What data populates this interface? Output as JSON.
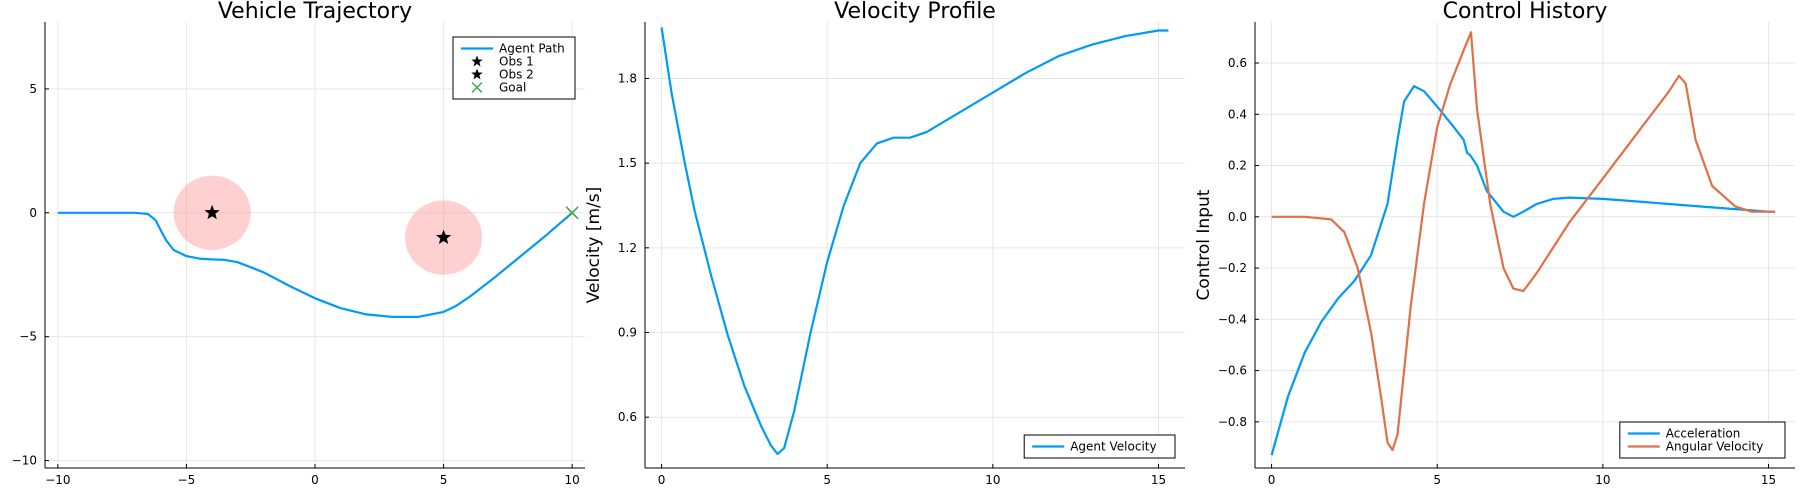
{
  "chart_data": [
    {
      "type": "line",
      "title": "Vehicle Trajectory",
      "xlabel": "",
      "ylabel": "",
      "xlim": [
        -10.5,
        10.5
      ],
      "ylim": [
        -10.3,
        7.7
      ],
      "xticks": [
        -10,
        -5,
        0,
        5,
        10
      ],
      "yticks": [
        -10,
        -5,
        0,
        5
      ],
      "grid": true,
      "legend_position": "top-right",
      "series": [
        {
          "name": "Agent Path",
          "color": "#009af9",
          "x": [
            -10,
            -8,
            -7,
            -6.5,
            -6.2,
            -6,
            -5.8,
            -5.5,
            -5,
            -4.5,
            -4,
            -3.5,
            -3,
            -2,
            -1,
            0,
            1,
            2,
            3,
            4,
            5,
            5.5,
            6,
            7,
            8,
            9,
            10
          ],
          "y": [
            0,
            0,
            0,
            -0.05,
            -0.3,
            -0.7,
            -1.1,
            -1.5,
            -1.75,
            -1.85,
            -1.88,
            -1.9,
            -2.0,
            -2.4,
            -2.95,
            -3.45,
            -3.85,
            -4.1,
            -4.2,
            -4.2,
            -4.0,
            -3.75,
            -3.4,
            -2.6,
            -1.75,
            -0.9,
            0
          ]
        }
      ],
      "obstacles": [
        {
          "name": "Obs 1",
          "x": -4,
          "y": 0,
          "radius": 1.5,
          "fill": "#ff9696"
        },
        {
          "name": "Obs 2",
          "x": 5,
          "y": -1,
          "radius": 1.5,
          "fill": "#ff9696"
        }
      ],
      "goal": {
        "name": "Goal",
        "x": 10,
        "y": 0,
        "color": "#3da44d"
      },
      "legend": [
        {
          "label": "Agent Path",
          "marker": "line",
          "color": "#009af9"
        },
        {
          "label": "Obs 1",
          "marker": "star",
          "color": "#000000"
        },
        {
          "label": "Obs 2",
          "marker": "star",
          "color": "#000000"
        },
        {
          "label": "Goal",
          "marker": "x",
          "color": "#3da44d"
        }
      ]
    },
    {
      "type": "line",
      "title": "Velocity Profile",
      "xlabel": "",
      "ylabel": "Velocity [m/s]",
      "xlim": [
        -0.5,
        15.8
      ],
      "ylim": [
        0.42,
        2.0
      ],
      "xticks": [
        0,
        5,
        10,
        15
      ],
      "yticks": [
        0.6,
        0.9,
        1.2,
        1.5,
        1.8
      ],
      "yticklabels": [
        "0.6",
        "0.9",
        "1.2",
        "1.5",
        "1.8"
      ],
      "grid": true,
      "legend_position": "bottom-right",
      "series": [
        {
          "name": "Agent Velocity",
          "color": "#009af9",
          "x": [
            0,
            0.3,
            0.7,
            1,
            1.5,
            2,
            2.5,
            3,
            3.3,
            3.5,
            3.7,
            4,
            4.5,
            5,
            5.5,
            6,
            6.5,
            7,
            7.5,
            8,
            9,
            10,
            11,
            12,
            13,
            14,
            15,
            15.3
          ],
          "y": [
            1.98,
            1.75,
            1.5,
            1.33,
            1.1,
            0.89,
            0.71,
            0.57,
            0.5,
            0.47,
            0.49,
            0.62,
            0.9,
            1.15,
            1.35,
            1.5,
            1.57,
            1.59,
            1.59,
            1.61,
            1.68,
            1.75,
            1.82,
            1.88,
            1.92,
            1.95,
            1.97,
            1.97
          ]
        }
      ],
      "legend": [
        {
          "label": "Agent Velocity",
          "marker": "line",
          "color": "#009af9"
        }
      ]
    },
    {
      "type": "line",
      "title": "Control History",
      "xlabel": "",
      "ylabel": "Control Input",
      "xlim": [
        -0.5,
        15.8
      ],
      "ylim": [
        -0.98,
        0.76
      ],
      "xticks": [
        0,
        5,
        10,
        15
      ],
      "yticks": [
        -0.8,
        -0.6,
        -0.4,
        -0.2,
        0.0,
        0.2,
        0.4,
        0.6
      ],
      "yticklabels": [
        "−0.8",
        "−0.6",
        "−0.4",
        "−0.2",
        "0.0",
        "0.2",
        "0.4",
        "0.6"
      ],
      "grid": true,
      "legend_position": "bottom-right",
      "series": [
        {
          "name": "Acceleration",
          "color": "#009af9",
          "x": [
            0,
            0.5,
            1,
            1.5,
            2,
            2.5,
            3,
            3.5,
            3.8,
            4,
            4.3,
            4.6,
            5,
            5.5,
            5.8,
            5.9,
            6,
            6.2,
            6.5,
            7,
            7.3,
            7.6,
            8,
            8.5,
            9,
            10,
            11,
            12,
            13,
            14,
            15,
            15.2
          ],
          "y": [
            -0.93,
            -0.7,
            -0.53,
            -0.41,
            -0.32,
            -0.25,
            -0.15,
            0.05,
            0.3,
            0.45,
            0.51,
            0.49,
            0.43,
            0.35,
            0.3,
            0.25,
            0.24,
            0.2,
            0.1,
            0.02,
            0,
            0.02,
            0.05,
            0.07,
            0.075,
            0.07,
            0.06,
            0.05,
            0.04,
            0.03,
            0.02,
            0.02
          ]
        },
        {
          "name": "Angular Velocity",
          "color": "#e26f46",
          "x": [
            0,
            1,
            1.8,
            2.2,
            2.6,
            3,
            3.3,
            3.5,
            3.65,
            3.8,
            4.2,
            4.6,
            5,
            5.4,
            5.8,
            6.02,
            6.2,
            6.6,
            7,
            7.3,
            7.6,
            8,
            9,
            10,
            11,
            12,
            12.3,
            12.5,
            12.8,
            13.3,
            14,
            14.5,
            15.2
          ],
          "y": [
            0,
            0,
            -0.01,
            -0.06,
            -0.2,
            -0.45,
            -0.7,
            -0.88,
            -0.91,
            -0.85,
            -0.35,
            0.05,
            0.35,
            0.52,
            0.65,
            0.72,
            0.42,
            0.05,
            -0.2,
            -0.28,
            -0.29,
            -0.22,
            -0.02,
            0.15,
            0.32,
            0.49,
            0.55,
            0.52,
            0.3,
            0.12,
            0.04,
            0.02,
            0.02
          ]
        }
      ],
      "legend": [
        {
          "label": "Acceleration",
          "marker": "line",
          "color": "#009af9"
        },
        {
          "label": "Angular Velocity",
          "marker": "line",
          "color": "#e26f46"
        }
      ]
    }
  ]
}
